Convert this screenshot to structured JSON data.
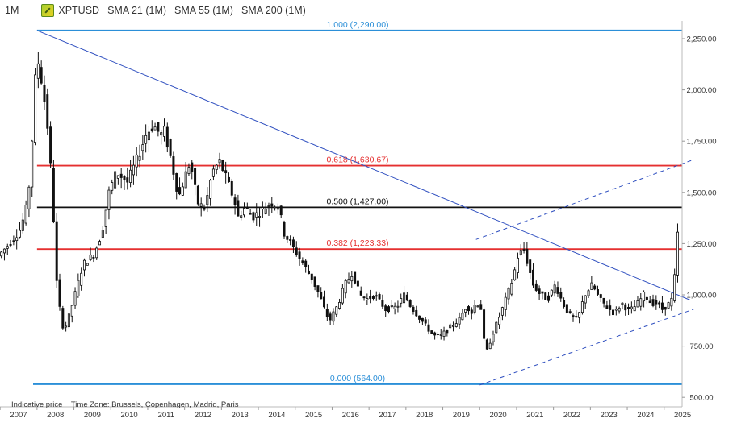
{
  "header": {
    "timeframe": "1M",
    "symbol": "XPTUSD",
    "indicators": [
      "SMA 21 (1M)",
      "SMA 55 (1M)",
      "SMA 200 (1M)"
    ]
  },
  "footer": {
    "indicative": "Indicative price",
    "timezone": "Time Zone: Brussels, Copenhagen, Madrid, Paris"
  },
  "chart_data": {
    "type": "candlestick",
    "ylim": [
      480,
      2330
    ],
    "xlim": [
      2007.0,
      2025.7
    ],
    "y_ticks": [
      {
        "value": 2250,
        "label": "2,250.00"
      },
      {
        "value": 2000,
        "label": "2,000.00"
      },
      {
        "value": 1750,
        "label": "1,750.00"
      },
      {
        "value": 1500,
        "label": "1,500.00"
      },
      {
        "value": 1250,
        "label": "1,250.00"
      },
      {
        "value": 1000,
        "label": "1,000.00"
      },
      {
        "value": 750,
        "label": "750.00"
      },
      {
        "value": 500,
        "label": "500.00"
      }
    ],
    "x_ticks": [
      "2007",
      "2008",
      "2009",
      "2010",
      "2011",
      "2012",
      "2013",
      "2014",
      "2015",
      "2016",
      "2017",
      "2018",
      "2019",
      "2020",
      "2021",
      "2022",
      "2023",
      "2024",
      "2025"
    ],
    "fib_levels": [
      {
        "ratio": "1.000",
        "value": 2290.0,
        "label": "1.000 (2,290.00)",
        "color": "#2b8fd8"
      },
      {
        "ratio": "0.618",
        "value": 1630.67,
        "label": "0.618 (1,630.67)",
        "color": "#e53030"
      },
      {
        "ratio": "0.500",
        "value": 1427.0,
        "label": "0.500 (1,427.00)",
        "color": "#111111"
      },
      {
        "ratio": "0.382",
        "value": 1223.33,
        "label": "0.382 (1,223.33)",
        "color": "#e53030"
      },
      {
        "ratio": "0.000",
        "value": 564.0,
        "label": "0.000 (564.00)",
        "color": "#2b8fd8"
      }
    ],
    "trendlines": [
      {
        "name": "resistance",
        "from": [
          2008.0,
          2290
        ],
        "to": [
          2025.7,
          975
        ],
        "style": "solid",
        "color": "#3050c0"
      },
      {
        "name": "support",
        "from": [
          2020.0,
          560
        ],
        "to": [
          2025.8,
          930
        ],
        "style": "dashed",
        "color": "#3050c0"
      },
      {
        "name": "channel-top",
        "from": [
          2019.9,
          1270
        ],
        "to": [
          2025.8,
          1660
        ],
        "style": "dashed",
        "color": "#3050c0"
      }
    ],
    "anchors": [
      [
        2007.0,
        1190
      ],
      [
        2007.3,
        1250
      ],
      [
        2007.6,
        1320
      ],
      [
        2007.8,
        1450
      ],
      [
        2007.9,
        1700
      ],
      [
        2008.0,
        2050
      ],
      [
        2008.1,
        2150
      ],
      [
        2008.2,
        2000
      ],
      [
        2008.3,
        1900
      ],
      [
        2008.45,
        1550
      ],
      [
        2008.6,
        1000
      ],
      [
        2008.75,
        850
      ],
      [
        2008.85,
        850
      ],
      [
        2009.0,
        950
      ],
      [
        2009.3,
        1150
      ],
      [
        2009.6,
        1200
      ],
      [
        2009.8,
        1300
      ],
      [
        2010.0,
        1500
      ],
      [
        2010.2,
        1600
      ],
      [
        2010.5,
        1550
      ],
      [
        2010.8,
        1680
      ],
      [
        2011.0,
        1780
      ],
      [
        2011.2,
        1830
      ],
      [
        2011.4,
        1780
      ],
      [
        2011.5,
        1800
      ],
      [
        2011.7,
        1650
      ],
      [
        2011.8,
        1550
      ],
      [
        2011.9,
        1480
      ],
      [
        2012.1,
        1600
      ],
      [
        2012.2,
        1650
      ],
      [
        2012.4,
        1450
      ],
      [
        2012.6,
        1420
      ],
      [
        2012.8,
        1600
      ],
      [
        2013.0,
        1650
      ],
      [
        2013.2,
        1560
      ],
      [
        2013.4,
        1460
      ],
      [
        2013.5,
        1380
      ],
      [
        2013.7,
        1430
      ],
      [
        2013.9,
        1380
      ],
      [
        2014.2,
        1420
      ],
      [
        2014.4,
        1450
      ],
      [
        2014.6,
        1430
      ],
      [
        2014.75,
        1300
      ],
      [
        2015.0,
        1230
      ],
      [
        2015.3,
        1140
      ],
      [
        2015.5,
        1080
      ],
      [
        2015.7,
        1000
      ],
      [
        2015.9,
        900
      ],
      [
        2016.0,
        880
      ],
      [
        2016.2,
        950
      ],
      [
        2016.4,
        1050
      ],
      [
        2016.6,
        1110
      ],
      [
        2016.8,
        1000
      ],
      [
        2017.0,
        980
      ],
      [
        2017.2,
        1000
      ],
      [
        2017.5,
        930
      ],
      [
        2017.8,
        940
      ],
      [
        2018.0,
        1000
      ],
      [
        2018.2,
        940
      ],
      [
        2018.5,
        870
      ],
      [
        2018.8,
        800
      ],
      [
        2019.0,
        800
      ],
      [
        2019.3,
        850
      ],
      [
        2019.5,
        880
      ],
      [
        2019.7,
        950
      ],
      [
        2019.85,
        910
      ],
      [
        2019.95,
        970
      ],
      [
        2020.1,
        930
      ],
      [
        2020.2,
        700
      ],
      [
        2020.4,
        810
      ],
      [
        2020.6,
        900
      ],
      [
        2020.8,
        1000
      ],
      [
        2020.95,
        1080
      ],
      [
        2021.1,
        1200
      ],
      [
        2021.25,
        1220
      ],
      [
        2021.5,
        1050
      ],
      [
        2021.7,
        1000
      ],
      [
        2021.9,
        980
      ],
      [
        2022.1,
        1050
      ],
      [
        2022.3,
        960
      ],
      [
        2022.5,
        900
      ],
      [
        2022.7,
        880
      ],
      [
        2022.9,
        1000
      ],
      [
        2023.1,
        1050
      ],
      [
        2023.3,
        980
      ],
      [
        2023.5,
        940
      ],
      [
        2023.7,
        910
      ],
      [
        2023.9,
        960
      ],
      [
        2024.1,
        920
      ],
      [
        2024.3,
        950
      ],
      [
        2024.5,
        1000
      ],
      [
        2024.7,
        960
      ],
      [
        2024.85,
        960
      ],
      [
        2025.0,
        930
      ],
      [
        2025.2,
        960
      ],
      [
        2025.3,
        990
      ],
      [
        2025.4,
        1280
      ],
      [
        2025.5,
        1380
      ]
    ]
  }
}
